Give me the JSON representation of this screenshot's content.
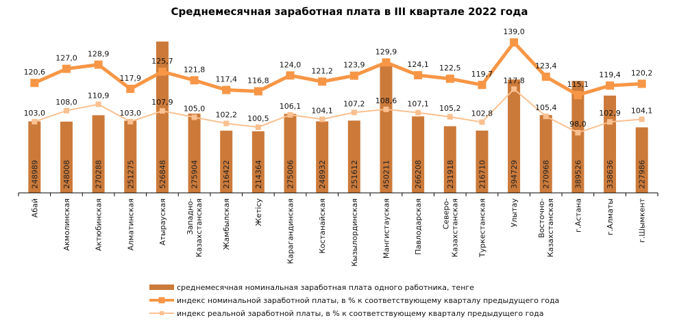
{
  "chart_data": {
    "type": "bar",
    "title": "Среднемесячная заработная плата в III квартале 2022 года",
    "categories": [
      [
        "Абай"
      ],
      [
        "Акмолинская"
      ],
      [
        "Актюбинская"
      ],
      [
        "Алматинская"
      ],
      [
        "Атырауская"
      ],
      [
        "Западно-",
        "Казахстанская"
      ],
      [
        "Жамбылская"
      ],
      [
        "Жетісу"
      ],
      [
        "Карагандинская"
      ],
      [
        "Костанайская"
      ],
      [
        "Кызылординская"
      ],
      [
        "Мангистауская"
      ],
      [
        "Павлодарская"
      ],
      [
        "Северо-",
        "Казахстанская"
      ],
      [
        "Туркестанская"
      ],
      [
        "Улытау"
      ],
      [
        "Восточно-",
        "Казахстанская"
      ],
      [
        "г.Астана"
      ],
      [
        "г.Алматы"
      ],
      [
        "г.Шымкент"
      ]
    ],
    "series": [
      {
        "name": "среднемесячная номинальная заработная плата одного работника, тенге",
        "type": "bar",
        "color": "#CC7A3A",
        "values": [
          248989,
          248008,
          270288,
          251275,
          526848,
          275904,
          216422,
          214364,
          275006,
          248932,
          251612,
          450211,
          266208,
          231918,
          216710,
          394729,
          270968,
          389526,
          338636,
          227986
        ]
      },
      {
        "name": "индекс номинальной заработной платы, в % к соответствующему кварталу предыдущего года",
        "type": "line",
        "color": "#F79646",
        "values": [
          120.6,
          127.0,
          128.9,
          117.9,
          125.7,
          121.8,
          117.4,
          116.8,
          124.0,
          121.2,
          123.9,
          129.9,
          124.1,
          122.5,
          119.7,
          139.0,
          123.4,
          115.1,
          119.4,
          120.2
        ],
        "labels": [
          "120,6",
          "127,0",
          "128,9",
          "117,9",
          "125,7",
          "121,8",
          "117,4",
          "116,8",
          "124,0",
          "121,2",
          "123,9",
          "129,9",
          "124,1",
          "122,5",
          "119,7",
          "139,0",
          "123,4",
          "115,1",
          "119,4",
          "120,2"
        ]
      },
      {
        "name": "индекс реальной заработной платы, в % к соответствующему кварталу предыдущего года",
        "type": "line",
        "color": "#FAC090",
        "values": [
          103.0,
          108.0,
          110.9,
          103.0,
          107.9,
          105.0,
          102.2,
          100.5,
          106.1,
          104.1,
          107.2,
          108.6,
          107.1,
          105.2,
          102.8,
          117.8,
          105.4,
          98.0,
          102.9,
          104.1
        ],
        "labels": [
          "103,0",
          "108,0",
          "110,9",
          "103,0",
          "107,9",
          "105,0",
          "102,2",
          "100,5",
          "106,1",
          "104,1",
          "107,2",
          "108,6",
          "107,1",
          "105,2",
          "102,8",
          "117,8",
          "105,4",
          "98,0",
          "102,9",
          "104,1"
        ]
      }
    ],
    "legend": "bottom",
    "grid": false
  }
}
